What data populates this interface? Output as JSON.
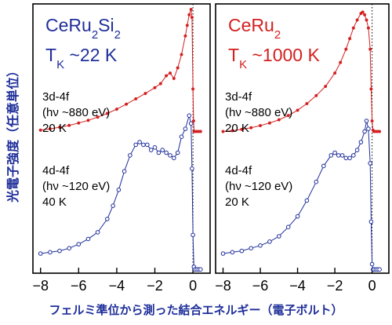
{
  "ylabel": "光電子強度（任意単位）",
  "xlabel": "フェルミ準位から測った結合エネルギー（電子ボルト）",
  "colors": {
    "red": "#d42020",
    "blue": "#1f2f9a",
    "label_blue": "#1f2f9a"
  },
  "chart_data": [
    {
      "type": "scatter",
      "title_line1_main": "CeRu",
      "title_line1_sub1": "2",
      "title_line1_mid": "Si",
      "title_line1_sub2": "2",
      "title_line2_main": "T",
      "title_line2_sub": "K",
      "title_line2_rest": " ~22 K",
      "title_color": "blue",
      "xticks": [
        "-8",
        "-6",
        "-4",
        "-2",
        "0"
      ],
      "xlim": [
        -8.4,
        0.9
      ],
      "ylim": [
        0,
        1
      ],
      "notes": [
        {
          "lines": [
            "3d-4f",
            "(hν  ~880 eV)",
            "20 K"
          ]
        },
        {
          "lines": [
            "4d-4f",
            "(hν  ~120 eV)",
            "40 K"
          ]
        }
      ],
      "series": [
        {
          "style": "filled-red",
          "x": [
            -8.0,
            -7.5,
            -7.0,
            -6.5,
            -6.0,
            -5.5,
            -5.0,
            -4.5,
            -4.0,
            -3.5,
            -3.0,
            -2.5,
            -2.0,
            -1.7,
            -1.4,
            -1.2,
            -1.0,
            -0.8,
            -0.6,
            -0.4,
            -0.3,
            -0.2,
            -0.1,
            -0.05,
            0.0,
            0.03,
            0.06,
            0.1,
            0.2,
            0.3,
            0.4
          ],
          "y": [
            0.545,
            0.55,
            0.556,
            0.563,
            0.572,
            0.582,
            0.594,
            0.608,
            0.624,
            0.643,
            0.663,
            0.683,
            0.705,
            0.72,
            0.75,
            0.76,
            0.74,
            0.78,
            0.83,
            0.9,
            0.94,
            0.98,
            1.0,
            0.97,
            0.7,
            0.58,
            0.54,
            0.54,
            0.54,
            0.54,
            0.54
          ]
        },
        {
          "style": "open-blue",
          "x": [
            -8.0,
            -7.5,
            -7.0,
            -6.5,
            -6.0,
            -5.5,
            -5.0,
            -4.5,
            -4.2,
            -3.9,
            -3.6,
            -3.3,
            -3.0,
            -2.8,
            -2.6,
            -2.4,
            -2.2,
            -2.0,
            -1.8,
            -1.6,
            -1.4,
            -1.2,
            -1.0,
            -0.8,
            -0.6,
            -0.4,
            -0.2,
            -0.1,
            -0.05,
            0.0,
            0.05,
            0.1,
            0.2,
            0.3,
            0.4
          ],
          "y": [
            0.08,
            0.085,
            0.09,
            0.1,
            0.115,
            0.135,
            0.16,
            0.21,
            0.26,
            0.32,
            0.39,
            0.45,
            0.49,
            0.5,
            0.49,
            0.49,
            0.47,
            0.48,
            0.46,
            0.47,
            0.46,
            0.45,
            0.44,
            0.46,
            0.52,
            0.55,
            0.6,
            0.57,
            0.4,
            0.15,
            0.03,
            0.02,
            0.02,
            0.02,
            0.02
          ]
        }
      ]
    },
    {
      "type": "scatter",
      "title_line1_main": "CeRu",
      "title_line1_sub1": "2",
      "title_line1_mid": "",
      "title_line1_sub2": "",
      "title_line2_main": "T",
      "title_line2_sub": "K",
      "title_line2_rest": " ~1000 K",
      "title_color": "red",
      "xticks": [
        "-8",
        "-6",
        "-4",
        "-2",
        "0"
      ],
      "xlim": [
        -8.4,
        0.9
      ],
      "ylim": [
        0,
        1
      ],
      "notes": [
        {
          "lines": [
            "3d-4f",
            "(hν  ~880 eV)",
            "20 K"
          ]
        },
        {
          "lines": [
            "4d-4f",
            "(hν  ~120 eV)",
            "20 K"
          ]
        }
      ],
      "series": [
        {
          "style": "filled-red",
          "x": [
            -8.0,
            -7.5,
            -7.0,
            -6.5,
            -6.0,
            -5.5,
            -5.0,
            -4.5,
            -4.0,
            -3.5,
            -3.0,
            -2.5,
            -2.0,
            -1.7,
            -1.4,
            -1.2,
            -1.0,
            -0.8,
            -0.6,
            -0.5,
            -0.4,
            -0.3,
            -0.2,
            -0.1,
            -0.05,
            0.0,
            0.05,
            0.1,
            0.2,
            0.3,
            0.4
          ],
          "y": [
            0.54,
            0.543,
            0.548,
            0.554,
            0.562,
            0.572,
            0.584,
            0.6,
            0.62,
            0.645,
            0.675,
            0.71,
            0.76,
            0.8,
            0.85,
            0.89,
            0.93,
            0.96,
            0.985,
            0.99,
            0.98,
            0.96,
            0.93,
            0.85,
            0.7,
            0.58,
            0.545,
            0.54,
            0.54,
            0.54,
            0.54
          ]
        },
        {
          "style": "open-blue",
          "x": [
            -8.0,
            -7.5,
            -7.0,
            -6.5,
            -6.0,
            -5.5,
            -5.0,
            -4.5,
            -4.0,
            -3.5,
            -3.0,
            -2.6,
            -2.2,
            -2.0,
            -1.8,
            -1.6,
            -1.4,
            -1.2,
            -1.0,
            -0.8,
            -0.6,
            -0.4,
            -0.3,
            -0.2,
            -0.1,
            -0.05,
            0.0,
            0.05,
            0.1,
            0.2,
            0.3,
            0.4
          ],
          "y": [
            0.08,
            0.085,
            0.09,
            0.1,
            0.11,
            0.125,
            0.145,
            0.18,
            0.22,
            0.28,
            0.35,
            0.41,
            0.45,
            0.46,
            0.45,
            0.45,
            0.44,
            0.44,
            0.45,
            0.47,
            0.5,
            0.54,
            0.58,
            0.55,
            0.42,
            0.2,
            0.04,
            0.02,
            0.02,
            0.02,
            0.02,
            0.02
          ]
        }
      ]
    }
  ]
}
